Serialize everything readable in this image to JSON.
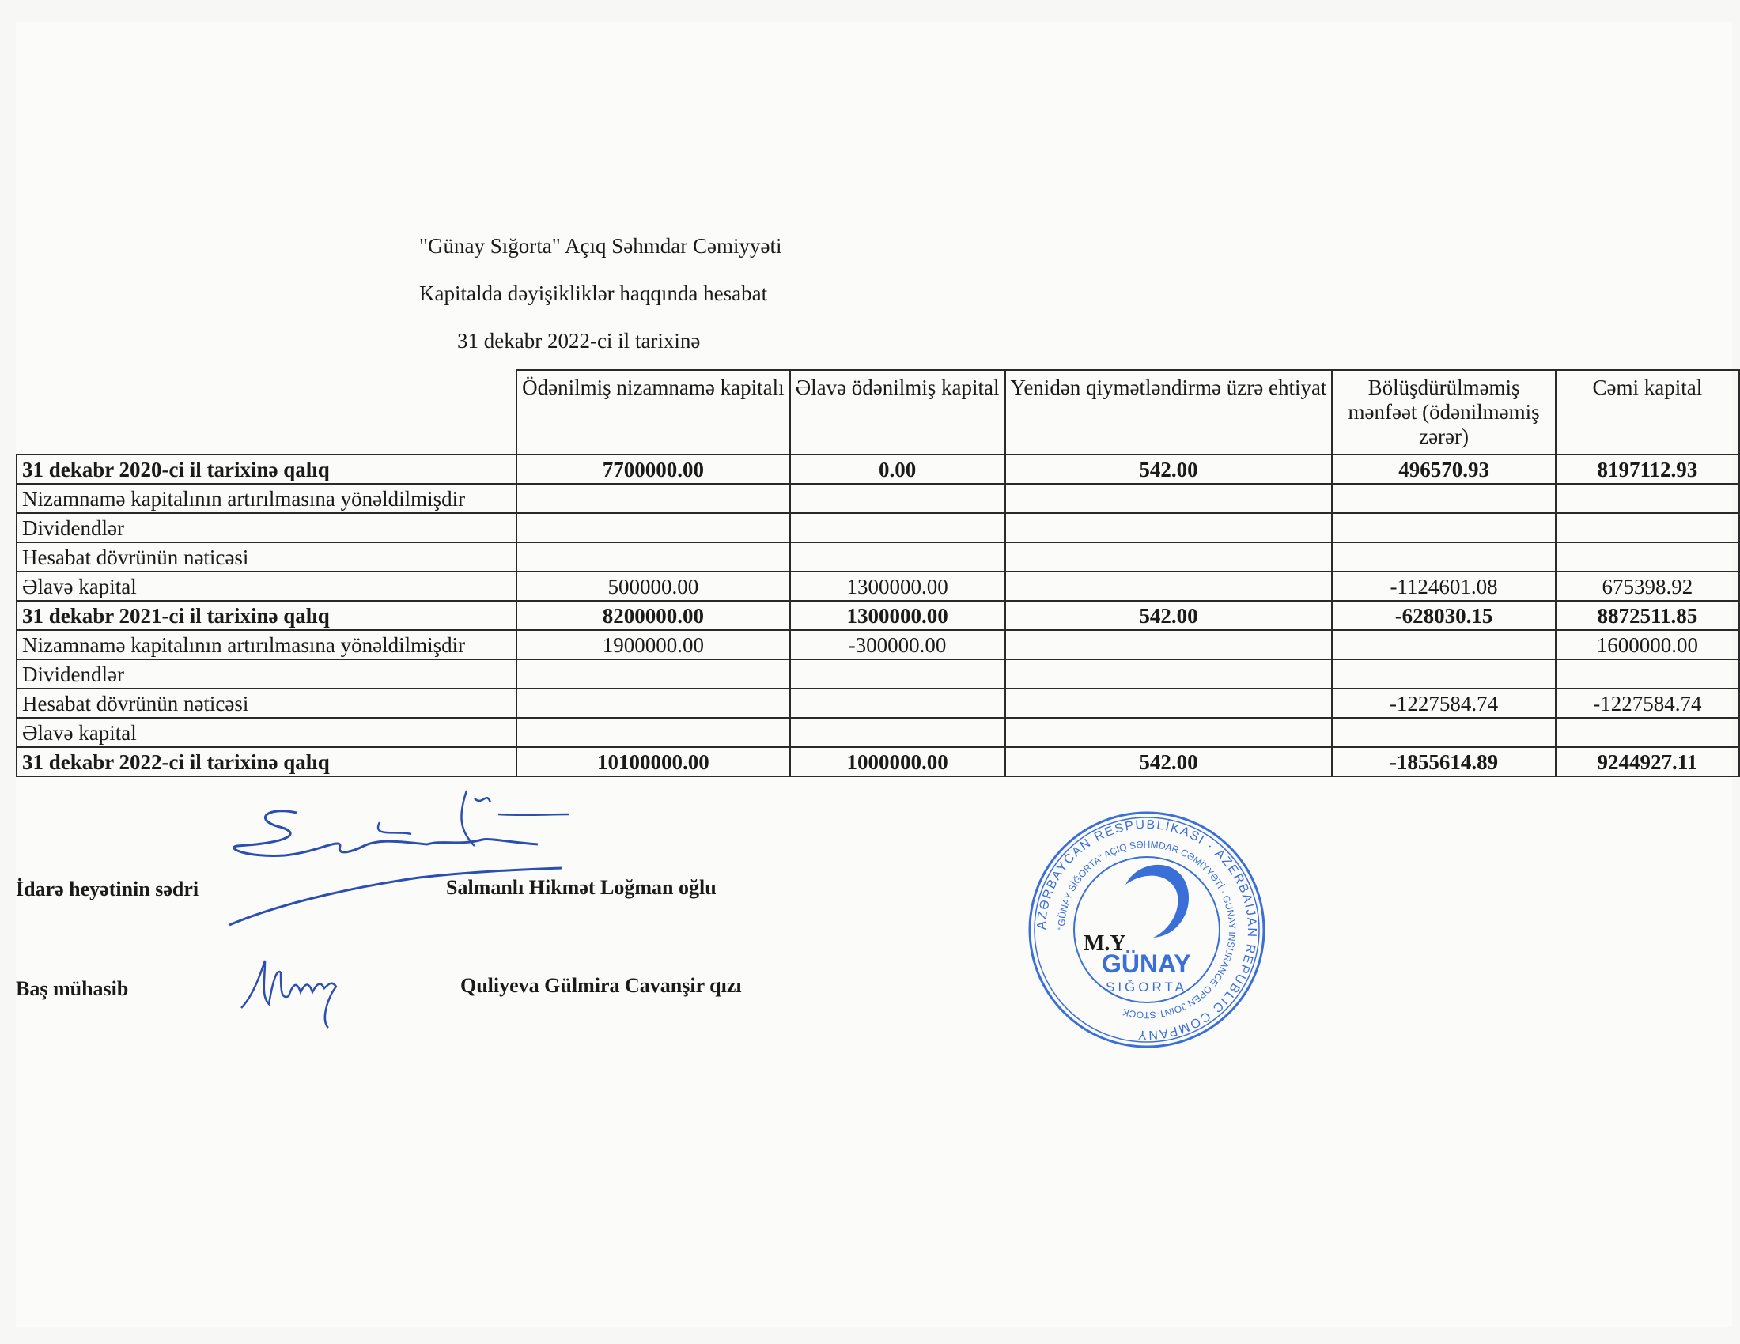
{
  "header": {
    "company": "\"Günay Sığorta\" Açıq Səhmdar Cəmiyyəti",
    "report_title": "Kapitalda dəyişikliklər haqqında hesabat",
    "date": "31 dekabr 2022-ci il tarixinə"
  },
  "table": {
    "columns": [
      "",
      "Ödənilmiş nizamnamə kapitalı",
      "Əlavə ödənilmiş kapital",
      "Yenidən qiymətləndirmə üzrə ehtiyat",
      "Bölüşdürülməmiş mənfəət (ödənilməmiş zərər)",
      "Cəmi kapital"
    ],
    "rows": [
      {
        "label": "31 dekabr 2020-ci il tarixinə   qalıq",
        "bold": true,
        "values": [
          "7700000.00",
          "0.00",
          "542.00",
          "496570.93",
          "8197112.93"
        ]
      },
      {
        "label": "Nizamnamə kapitalının artırılmasına yönəldilmişdir",
        "bold": false,
        "values": [
          "",
          "",
          "",
          "",
          ""
        ]
      },
      {
        "label": "Dividendlər",
        "bold": false,
        "values": [
          "",
          "",
          "",
          "",
          ""
        ]
      },
      {
        "label": "Hesabat dövrünün nəticəsi",
        "bold": false,
        "values": [
          "",
          "",
          "",
          "",
          ""
        ]
      },
      {
        "label": "Əlavə kapital",
        "bold": false,
        "values": [
          "500000.00",
          "1300000.00",
          "",
          "-1124601.08",
          "675398.92"
        ]
      },
      {
        "label": "31 dekabr 2021-ci il tarixinə qalıq",
        "bold": true,
        "values": [
          "8200000.00",
          "1300000.00",
          "542.00",
          "-628030.15",
          "8872511.85"
        ]
      },
      {
        "label": "Nizamnamə kapitalının artırılmasına yönəldilmişdir",
        "bold": false,
        "values": [
          "1900000.00",
          "-300000.00",
          "",
          "",
          "1600000.00"
        ]
      },
      {
        "label": "Dividendlər",
        "bold": false,
        "values": [
          "",
          "",
          "",
          "",
          ""
        ]
      },
      {
        "label": "Hesabat dövrünün nəticəsi",
        "bold": false,
        "values": [
          "",
          "",
          "",
          "-1227584.74",
          "-1227584.74"
        ]
      },
      {
        "label": "Əlavə kapital",
        "bold": false,
        "values": [
          "",
          "",
          "",
          "",
          ""
        ]
      },
      {
        "label": "31 dekabr 2022-ci il tarixinə qalıq",
        "bold": true,
        "values": [
          "10100000.00",
          "1000000.00",
          "542.00",
          "-1855614.89",
          "9244927.11"
        ]
      }
    ]
  },
  "signatures": {
    "chair_title": "İdarə heyətinin sədri",
    "chair_name": "Salmanlı Hikmət Loğman oğlu",
    "accountant_title": "Baş mühasib",
    "accountant_name": "Quliyeva Gülmira Cavanşir qızı"
  },
  "stamp": {
    "outer_text": "AZƏRBAYCAN RESPUBLİKASI · AZERBAIJAN REPUBLIC COMPANY",
    "inner_text": "\"GÜNAY SİĞORTA\" AÇIQ SƏHMDAR CƏMİYYƏTİ · GUNAY INSURANCE OPEN JOINT-STOCK",
    "mark": "M.Y",
    "brand": "GÜNAY",
    "brand_sub": "SIĞORTA",
    "color": "#3a6fd8"
  }
}
